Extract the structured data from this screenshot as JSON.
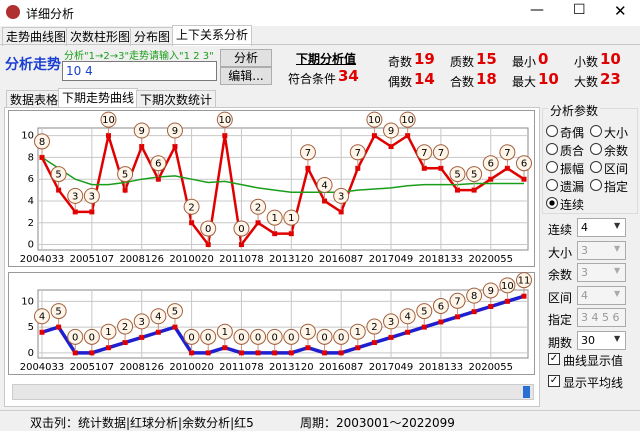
{
  "window": {
    "title": "详细分析"
  },
  "tabs": [
    "走势曲线图",
    "次数柱形图",
    "分布图",
    "上下关系分析"
  ],
  "analysis": {
    "label": "分析走势",
    "hint": "分析\"1→2→3\"走势请输入\"1 2 3\"",
    "input": "10 4",
    "analyze_button": "分析",
    "edit_button": "编辑...",
    "next_title": "下期分析值",
    "match_label": "符合条件",
    "match_value": 34,
    "stats": [
      {
        "label": "奇数",
        "value": 19
      },
      {
        "label": "偶数",
        "value": 14
      },
      {
        "label": "质数",
        "value": 15
      },
      {
        "label": "合数",
        "value": 18
      },
      {
        "label": "最小",
        "value": 0
      },
      {
        "label": "最大",
        "value": 10
      },
      {
        "label": "小数",
        "value": 10
      },
      {
        "label": "大数",
        "value": 23
      }
    ]
  },
  "chart_tabs": [
    "数据表格",
    "下期走势曲线",
    "下期次数统计"
  ],
  "chart_data": [
    {
      "type": "line",
      "categories": [
        "2004033",
        null,
        null,
        "2005107",
        null,
        null,
        "2008126",
        null,
        null,
        "2010020",
        null,
        null,
        "2011078",
        null,
        null,
        "2013120",
        null,
        null,
        "2016087",
        null,
        null,
        "2017049",
        null,
        null,
        "2018133",
        null,
        null,
        "2020055",
        null,
        null
      ],
      "series": [
        {
          "color": "#e00000",
          "values": [
            8,
            5,
            3,
            3,
            10,
            5,
            9,
            6,
            9,
            2,
            0,
            10,
            0,
            2,
            1,
            1,
            7,
            4,
            3,
            7,
            10,
            9,
            10,
            7,
            7,
            5,
            5,
            6,
            7,
            6
          ]
        },
        {
          "color": "#1a9e1a",
          "values": [
            8,
            7,
            6,
            5.5,
            5.5,
            5.7,
            6,
            6.2,
            6.3,
            6,
            5.7,
            5.8,
            5.5,
            5.2,
            5,
            4.8,
            4.8,
            4.8,
            4.8,
            5,
            5.1,
            5.2,
            5.4,
            5.5,
            5.5,
            5.5,
            5.6,
            5.6,
            5.6,
            5.6
          ]
        }
      ],
      "ylim": [
        -0.5,
        10.7
      ],
      "yticks": [
        0,
        2,
        4,
        6,
        8,
        10
      ],
      "grid": true
    },
    {
      "type": "line",
      "categories": [
        "2004033",
        null,
        null,
        "2005107",
        null,
        null,
        "2008126",
        null,
        null,
        "2010020",
        null,
        null,
        "2011078",
        null,
        null,
        "2013120",
        null,
        null,
        "2016087",
        null,
        null,
        "2017049",
        null,
        null,
        "2018133",
        null,
        null,
        "2020055",
        null,
        null
      ],
      "series": [
        {
          "color": "#1f1fd0",
          "values": [
            4,
            5,
            0,
            0,
            1,
            2,
            3,
            4,
            5,
            0,
            0,
            1,
            0,
            0,
            0,
            0,
            1,
            0,
            0,
            1,
            2,
            3,
            4,
            5,
            6,
            7,
            8,
            9,
            10,
            11
          ]
        }
      ],
      "ylim": [
        -1,
        12.2
      ],
      "yticks": [
        0,
        5,
        10
      ],
      "grid": true
    }
  ],
  "params": {
    "title": "分析参数",
    "radios": [
      "奇偶",
      "大小",
      "质合",
      "余数",
      "振幅",
      "区间",
      "遗漏",
      "指定",
      "连续"
    ],
    "fields": [
      {
        "label": "连续",
        "value": "4"
      },
      {
        "label": "大小",
        "value": "3"
      },
      {
        "label": "余数",
        "value": "3"
      },
      {
        "label": "区间",
        "value": "4"
      },
      {
        "label": "指定",
        "value": "3 4 5 6"
      },
      {
        "label": "期数",
        "value": "30"
      }
    ],
    "checks": [
      "曲线显示值",
      "显示平均线"
    ]
  },
  "status": {
    "left": "双击列：统计数据|红球分析|余数分析|红5",
    "right": "周期：2003001～2022099"
  }
}
